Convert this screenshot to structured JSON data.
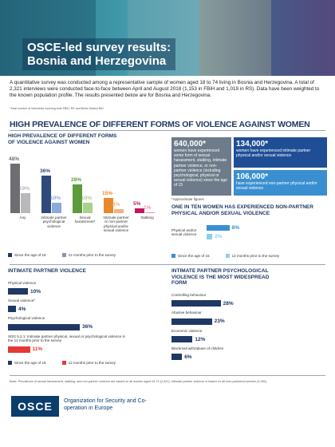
{
  "header": {
    "title": "OSCE-led survey results:",
    "subtitle": "Bosnia and Herzegovina"
  },
  "intro": {
    "text": "A quantitative survey was conducted among a representative sample of women aged 18 to 74 living in Bosnia and Herzegovina. A total of 2,321 interviews were conducted face-to-face between April and August 2018 (1,153 in FBiH and 1,019 in RS). Data have been weighted to the known population profile. The results presented below are for Bosnia and Herzegovina.",
    "note": "*Total number of interviews covering both FBiH, RS and Brčko District BiH"
  },
  "section_title": "HIGH PREVALENCE OF DIFFERENT FORMS OF VIOLENCE AGAINST WOMEN",
  "stats": [
    {
      "number": "640,000*",
      "text": "women have experienced some form of sexual harassment, stalking, intimate partner violence, or non-partner violence (including psychological, physical or sexual violence) since the age of 15"
    },
    {
      "number": "134,000*",
      "text": "women have experienced intimate partner physical and/or sexual violence"
    },
    {
      "number": "106,000*",
      "text": "have experienced non-partner physical and/or sexual violence"
    }
  ],
  "stats_note": "*Approximate figures",
  "chart_data": [
    {
      "type": "bar",
      "title": "HIGH PREVALENCE OF DIFFERENT FORMS OF VIOLENCE AGAINST WOMEN",
      "categories": [
        "Any",
        "Intimate partner psychological violence",
        "Sexual harassment*",
        "Intimate partner or non-partner physical and/or sexual violence",
        "Stalking"
      ],
      "series": [
        {
          "name": "Since the age of 15",
          "color": "#1f3864",
          "colors": [
            "#6d6e71",
            "#2e4a7d",
            "#5b9b3c",
            "#e8892b",
            "#c2185b"
          ],
          "values": [
            48,
            36,
            28,
            15,
            5
          ],
          "value_labels": [
            "48%",
            "36%",
            "28%",
            "15%",
            "5%"
          ]
        },
        {
          "name": "12 months prior to the survey",
          "color": "#8497b0",
          "colors": [
            "#b9b9bb",
            "#8ea9db",
            "#a9d18e",
            "#f4b183",
            "#f48fb1"
          ],
          "values": [
            19,
            10,
            10,
            4,
            1
          ],
          "value_labels": [
            "19%",
            "10%",
            "10%",
            "4%",
            "1%"
          ]
        }
      ]
    },
    {
      "type": "hbar-group",
      "title": "ONE IN TEN WOMEN HAS EXPERIENCED NON-PARTNER PHYSICAL AND/OR SEXUAL VIOLENCE",
      "categories": [
        "Physical and/or sexual violence"
      ],
      "series": [
        {
          "name": "Since the age of 15",
          "color": "#3a8fd0",
          "values": [
            8
          ],
          "value_labels": [
            "8%"
          ]
        },
        {
          "name": "12 months prior to the survey",
          "color": "#8fcdee",
          "values": [
            2
          ],
          "value_labels": [
            "2%"
          ]
        }
      ]
    },
    {
      "type": "hbar-list",
      "title": "INTIMATE PARTNER VIOLENCE",
      "categories": [
        "Physical violence",
        "Sexual violence*",
        "Psychological violence",
        "SDG 5.2.1: Intimate partner physical, sexual or psychological violence in the 12 months prior to the survey"
      ],
      "series": [
        {
          "name": "Since the age of 15",
          "color": "#1f3864",
          "values": [
            10,
            4,
            36,
            null
          ],
          "value_labels": [
            "10%",
            "4%",
            "36%",
            null
          ]
        },
        {
          "name": "12 months prior to the survey",
          "color": "#e53935",
          "values": [
            null,
            null,
            null,
            11
          ],
          "value_labels": [
            null,
            null,
            null,
            "11%"
          ]
        }
      ]
    },
    {
      "type": "hbar-list",
      "title": "INTIMATE PARTNER PSYCHOLOGICAL VIOLENCE IS THE MOST WIDESPREAD FORM",
      "categories": [
        "Controlling behaviour",
        "Abusive behaviour",
        "Economic violence",
        "Blackmail with/abuse of children"
      ],
      "color": "#1f3864",
      "values": [
        28,
        23,
        12,
        6
      ],
      "value_labels": [
        "28%",
        "23%",
        "12%",
        "6%"
      ]
    }
  ],
  "base_note": "Base: Prevalence of sexual harassment, stalking, and non-partner violence are based on all women aged 15-74 (2,321). Intimate partner violence is based on all ever-partnered women (2,061).",
  "footer": {
    "logo": "OSCE",
    "org": "Organization for Security and Co-operation in Europe"
  }
}
